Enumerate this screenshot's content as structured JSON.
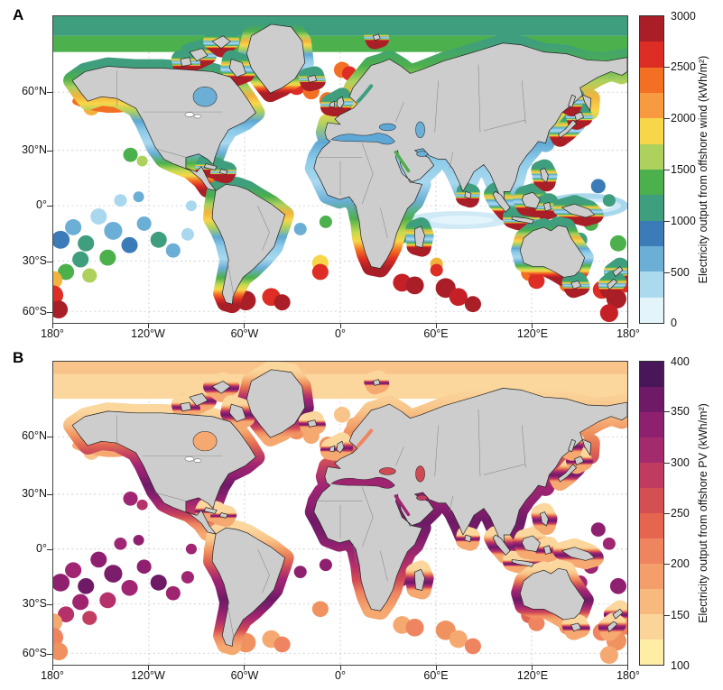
{
  "figure": {
    "panelA_label": "A",
    "panelB_label": "B"
  },
  "axes": {
    "x_ticks": [
      "180°",
      "120°W",
      "60°W",
      "0°",
      "60°E",
      "120°E",
      "180°"
    ],
    "y_ticks": [
      "60°N",
      "30°N",
      "0°",
      "30°S",
      "60°S"
    ]
  },
  "colorbars": {
    "wind": {
      "label": "Electricity output from offshore wind (kWh/m²)",
      "ticks_top_to_bottom": [
        "3000",
        "2500",
        "2000",
        "1500",
        "1000",
        "500",
        "0"
      ],
      "segment_colors_bottom_to_top": [
        "#e3f4fb",
        "#abd9ee",
        "#6baed6",
        "#3b7cb8",
        "#3f9e7d",
        "#4cb04c",
        "#aed15e",
        "#f8d64a",
        "#f89b40",
        "#f26f24",
        "#dd2d24",
        "#a91e27"
      ]
    },
    "pv": {
      "label": "Electricity output from offshore PV (kWh/m²)",
      "ticks_top_to_bottom": [
        "400",
        "350",
        "300",
        "250",
        "200",
        "150",
        "100"
      ],
      "segment_colors_bottom_to_top": [
        "#fdeda5",
        "#fbd49a",
        "#f8b97e",
        "#f49e6b",
        "#ef855e",
        "#e5654f",
        "#d44f52",
        "#c13a5f",
        "#a42a6e",
        "#8f2070",
        "#6e1a66",
        "#481659"
      ]
    }
  },
  "style_colors": {
    "land": "#cdcdcd",
    "coastline": "#222222",
    "country_border": "#808080",
    "gridline": "#c8c8c8"
  },
  "chart_data": [
    {
      "panel": "A",
      "type": "heatmap",
      "variable": "Electricity output from offshore wind",
      "units": "kWh/m²",
      "map": "world, equirectangular-style, 180°W–180°E, ~62°S–85°N, gray land, data shown in coastal EEZ bands and island EEZ circles",
      "colorbar": {
        "min": 0,
        "max": 3000,
        "tick_values": [
          0,
          500,
          1000,
          1500,
          2000,
          2500,
          3000
        ],
        "segment_step": 250,
        "colors_low_to_high": [
          "#e3f4fb",
          "#abd9ee",
          "#6baed6",
          "#3b7cb8",
          "#3f9e7d",
          "#4cb04c",
          "#aed15e",
          "#f8d64a",
          "#f89b40",
          "#f26f24",
          "#dd2d24",
          "#a91e27"
        ]
      },
      "x_axis": {
        "ticks": [
          "180°",
          "120°W",
          "60°W",
          "0°",
          "60°E",
          "120°E",
          "180°"
        ],
        "range_deg": [
          -180,
          180
        ],
        "grid": "dashed light gray"
      },
      "y_axis": {
        "ticks": [
          "60°N",
          "30°N",
          "0°",
          "30°S",
          "60°S"
        ],
        "range_deg": [
          -62,
          85
        ]
      },
      "regional_values_approx_kWh_per_m2": {
        "arctic_ocean_band": "1000–1250",
        "north_atlantic_iceland_uk_norway": "2000–2750",
        "gulf_of_alaska_aleutians": "2000–2500",
        "us_east_coast": "1750–2250",
        "mediterranean_black_sea": "500–1000",
        "tropical_coasts_india_se_asia_caribbean": "250–750",
        "equatorial_west_pacific_band": "0–500",
        "tropical_pacific_island_eezs": "500–1250",
        "south_africa_south_australia_new_zealand": "1500–2500",
        "southern_chile_argentina": "2500–3000",
        "southern_ocean_island_eezs_50S": "2750–3000"
      }
    },
    {
      "panel": "B",
      "type": "heatmap",
      "variable": "Electricity output from offshore PV",
      "units": "kWh/m²",
      "map": "world, same layout as panel A",
      "colorbar": {
        "min": 100,
        "max": 400,
        "tick_values": [
          100,
          150,
          200,
          250,
          300,
          350,
          400
        ],
        "segment_step": 25,
        "colors_low_to_high": [
          "#fdeda5",
          "#fbd49a",
          "#f8b97e",
          "#f49e6b",
          "#ef855e",
          "#e5654f",
          "#d44f52",
          "#c13a5f",
          "#a42a6e",
          "#8f2070",
          "#6e1a66",
          "#481659"
        ]
      },
      "x_axis": {
        "ticks": [
          "180°",
          "120°W",
          "60°W",
          "0°",
          "60°E",
          "120°E",
          "180°"
        ],
        "range_deg": [
          -180,
          180
        ],
        "grid": "dashed light gray"
      },
      "y_axis": {
        "ticks": [
          "60°N",
          "30°N",
          "0°",
          "30°S",
          "60°S"
        ],
        "range_deg": [
          -62,
          85
        ]
      },
      "regional_values_approx_kWh_per_m2": {
        "arctic_ocean_band": "100–150",
        "subarctic_coasts_60N": "150–225",
        "japan_korea_east_china": "250–300",
        "mediterranean_black_caspian": "250–325",
        "subtropical_coasts_30N_30S": "300–350",
        "equatorial_tropical_coasts_and_islands": "350–400",
        "southern_mid_latitudes_45S": "200–250",
        "southern_ocean_island_eezs": "150–225"
      }
    }
  ]
}
